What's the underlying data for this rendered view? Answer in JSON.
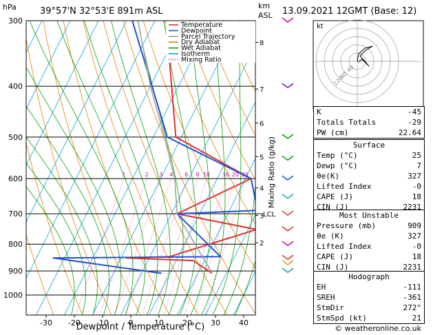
{
  "header": {
    "pressure_unit": "hPa",
    "location": "39°57'N  32°53'E  891m  ASL",
    "height_unit_top": "km",
    "height_unit_bottom": "ASL",
    "datetime": "13.09.2021  12GMT  (Base: 12)"
  },
  "legend": {
    "items": [
      {
        "label": "Temperature",
        "color": "#e03030",
        "style": "solid"
      },
      {
        "label": "Dewpoint",
        "color": "#2050d0",
        "style": "solid"
      },
      {
        "label": "Parcel Trajectory",
        "color": "#a0a0a0",
        "style": "solid"
      },
      {
        "label": "Dry Adiabat",
        "color": "#e08000",
        "style": "solid"
      },
      {
        "label": "Wet Adiabat",
        "color": "#00a000",
        "style": "solid"
      },
      {
        "label": "Isotherm",
        "color": "#00a0e0",
        "style": "solid"
      },
      {
        "label": "Mixing Ratio",
        "color": "#d000a0",
        "style": "dotted"
      }
    ]
  },
  "chart_data": {
    "type": "line",
    "subtype": "skew-t log-p",
    "xlabel": "Dewpoint / Temperature (°C)",
    "ylabel": "hPa",
    "right_label": "Mixing Ratio (g/kg)",
    "x_ticks": [
      -30,
      -20,
      -10,
      0,
      10,
      20,
      30,
      40
    ],
    "pressure_ticks": [
      300,
      400,
      500,
      600,
      700,
      800,
      900,
      1000
    ],
    "height_ticks": [
      {
        "label": "8",
        "p": 330
      },
      {
        "label": "7",
        "p": 405
      },
      {
        "label": "6",
        "p": 470
      },
      {
        "label": "5",
        "p": 545
      },
      {
        "label": "4",
        "p": 625
      },
      {
        "label": "3",
        "p": 705
      },
      {
        "label": "2",
        "p": 795
      }
    ],
    "lcl_label": "LCL",
    "lcl_p": 700,
    "mixing_ratio_labels": [
      "1",
      "2",
      "3",
      "4",
      "6",
      "8",
      "10",
      "16",
      "20",
      "25"
    ],
    "mixing_ratio_values": [
      1,
      2,
      3,
      4,
      6,
      8,
      10,
      16,
      20,
      25
    ],
    "series": [
      {
        "name": "Temperature",
        "color": "#e03030",
        "points": [
          [
            909,
            25
          ],
          [
            860,
            16
          ],
          [
            850,
            -8
          ],
          [
            845,
            7
          ],
          [
            750,
            33
          ],
          [
            700,
            2
          ],
          [
            600,
            22
          ],
          [
            500,
            -12
          ],
          [
            300,
            -36
          ]
        ]
      },
      {
        "name": "Dewpoint",
        "color": "#2050d0",
        "points": [
          [
            909,
            7
          ],
          [
            850,
            -34
          ],
          [
            845,
            25
          ],
          [
            700,
            2
          ],
          [
            690,
            30
          ],
          [
            600,
            22
          ],
          [
            500,
            -15
          ],
          [
            300,
            -48
          ]
        ]
      },
      {
        "name": "Parcel Trajectory",
        "color": "#a0a0a0",
        "points": [
          [
            909,
            25
          ],
          [
            700,
            2
          ],
          [
            600,
            -5
          ],
          [
            500,
            -16
          ],
          [
            400,
            -30
          ],
          [
            300,
            -46
          ]
        ]
      }
    ]
  },
  "hodograph": {
    "unit": "kt",
    "ring_labels": [
      "120",
      "80",
      "40"
    ]
  },
  "indices": {
    "rows": [
      {
        "label": "K",
        "value": "-45"
      },
      {
        "label": "Totals Totals",
        "value": "-29"
      },
      {
        "label": "PW (cm)",
        "value": "22.64"
      }
    ]
  },
  "surface": {
    "title": "Surface",
    "rows": [
      {
        "label": "Temp (°C)",
        "value": "25"
      },
      {
        "label": "Dewp (°C)",
        "value": "7"
      },
      {
        "label": "θe(K)",
        "value": "327"
      },
      {
        "label": "Lifted Index",
        "value": "-0"
      },
      {
        "label": "CAPE (J)",
        "value": "18"
      },
      {
        "label": "CIN (J)",
        "value": "2231"
      }
    ]
  },
  "most_unstable": {
    "title": "Most Unstable",
    "rows": [
      {
        "label": "Pressure (mb)",
        "value": "909"
      },
      {
        "label": "θe (K)",
        "value": "327"
      },
      {
        "label": "Lifted Index",
        "value": "-0"
      },
      {
        "label": "CAPE (J)",
        "value": "18"
      },
      {
        "label": "CIN (J)",
        "value": "2231"
      }
    ]
  },
  "hodograph_table": {
    "title": "Hodograph",
    "rows": [
      {
        "label": "EH",
        "value": "-111"
      },
      {
        "label": "SREH",
        "value": "-361"
      },
      {
        "label": "StmDir",
        "value": "272°"
      },
      {
        "label": "StmSpd (kt)",
        "value": "21"
      }
    ]
  },
  "footer": {
    "credit": "© weatheronline.co.uk"
  }
}
